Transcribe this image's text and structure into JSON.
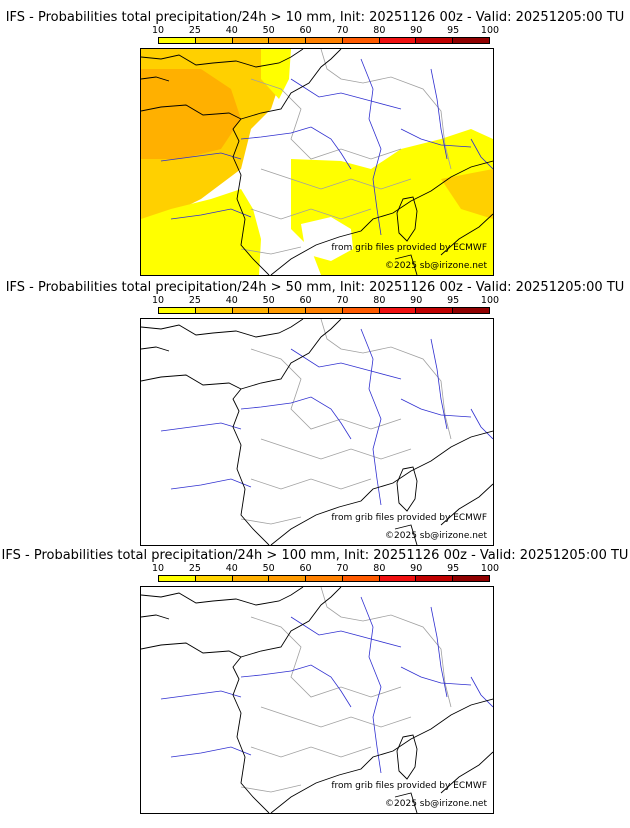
{
  "panels": [
    {
      "title": "IFS - Probabilities total precipitation/24h > 10 mm, Init: 20251126 00z - Valid: 20251205:00 TU",
      "threshold": "10 mm",
      "has_shading": true
    },
    {
      "title": "IFS - Probabilities total precipitation/24h > 50 mm, Init: 20251126 00z - Valid: 20251205:00 TU",
      "threshold": "50 mm",
      "has_shading": false
    },
    {
      "title": "IFS - Probabilities total precipitation/24h > 100 mm, Init: 20251126 00z - Valid: 20251205:00 TU",
      "threshold": "100 mm",
      "has_shading": false
    }
  ],
  "colorbar": {
    "labels": [
      "10",
      "25",
      "40",
      "50",
      "60",
      "70",
      "80",
      "90",
      "95",
      "100"
    ],
    "colors": [
      "#ffff00",
      "#ffd400",
      "#ffb000",
      "#ff9a00",
      "#ff8000",
      "#ff5a00",
      "#f01010",
      "#c00000",
      "#900000",
      "#5a0000"
    ]
  },
  "credits": {
    "source": "from grib files provided by ECMWF",
    "copyright": "©2025 sb@irizone.net"
  },
  "map_colors": {
    "coast": "#000000",
    "river": "#3030d0",
    "border": "#a0a0a0",
    "prob_yellow": "#ffff00",
    "prob_gold": "#ffd000",
    "prob_orange": "#ffb000"
  }
}
